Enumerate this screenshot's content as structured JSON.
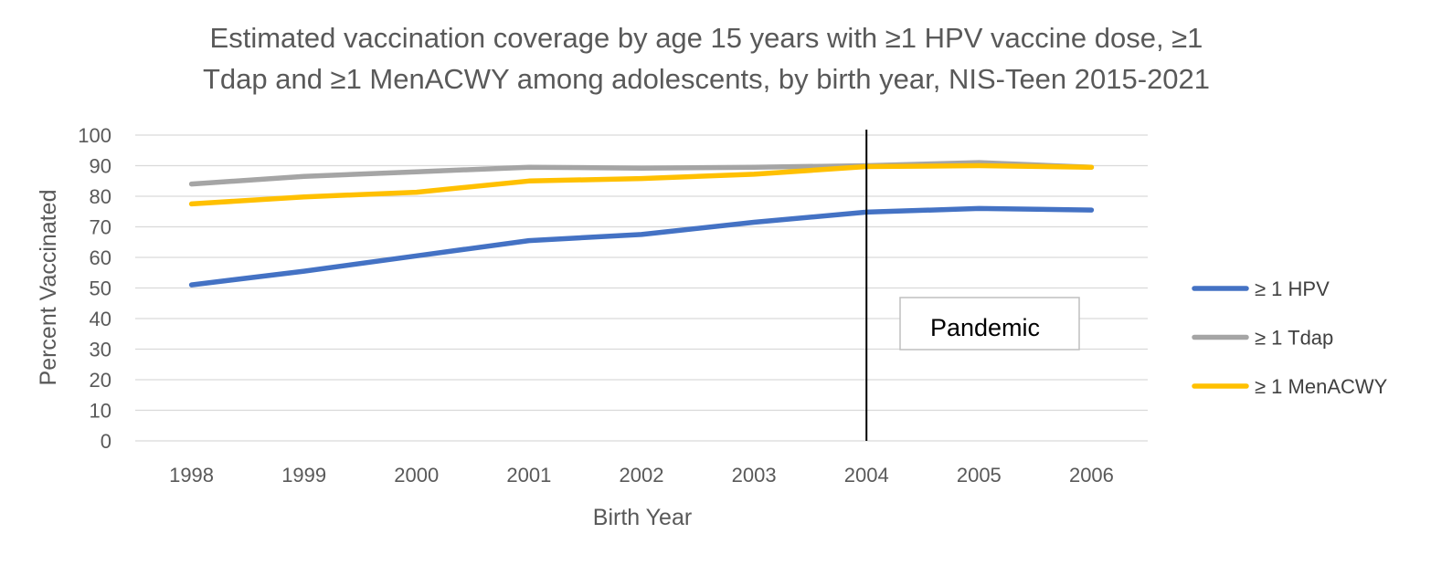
{
  "chart_data": {
    "type": "line",
    "title_lines": [
      "Estimated vaccination coverage by age 15 years with ≥1 HPV vaccine dose, ≥1",
      "Tdap and ≥1 MenACWY among adolescents, by birth year, NIS-Teen 2015-2021"
    ],
    "xlabel": "Birth Year",
    "ylabel": "Percent Vaccinated",
    "categories": [
      "1998",
      "1999",
      "2000",
      "2001",
      "2002",
      "2003",
      "2004",
      "2005",
      "2006"
    ],
    "yticks": [
      "0",
      "10",
      "20",
      "30",
      "40",
      "50",
      "60",
      "70",
      "80",
      "90",
      "100"
    ],
    "ylim": [
      0,
      100
    ],
    "grid": true,
    "legend_position": "right",
    "series": [
      {
        "name": "≥ 1 HPV",
        "color": "#4472C4",
        "values": [
          51,
          55.5,
          60.5,
          65.5,
          67.5,
          71.5,
          74.8,
          76,
          75.5
        ]
      },
      {
        "name": "≥ 1 Tdap",
        "color": "#A5A5A5",
        "values": [
          84,
          86.5,
          88,
          89.5,
          89.2,
          89.5,
          90,
          91,
          89.5
        ]
      },
      {
        "name": "≥ 1 MenACWY",
        "color": "#FFC000",
        "values": [
          77.5,
          79.8,
          81.3,
          85,
          85.8,
          87.2,
          89.7,
          90,
          89.5
        ]
      }
    ],
    "marker_line": {
      "category": "2004",
      "color": "#000000"
    },
    "annotation": {
      "text": "Pandemic"
    }
  }
}
